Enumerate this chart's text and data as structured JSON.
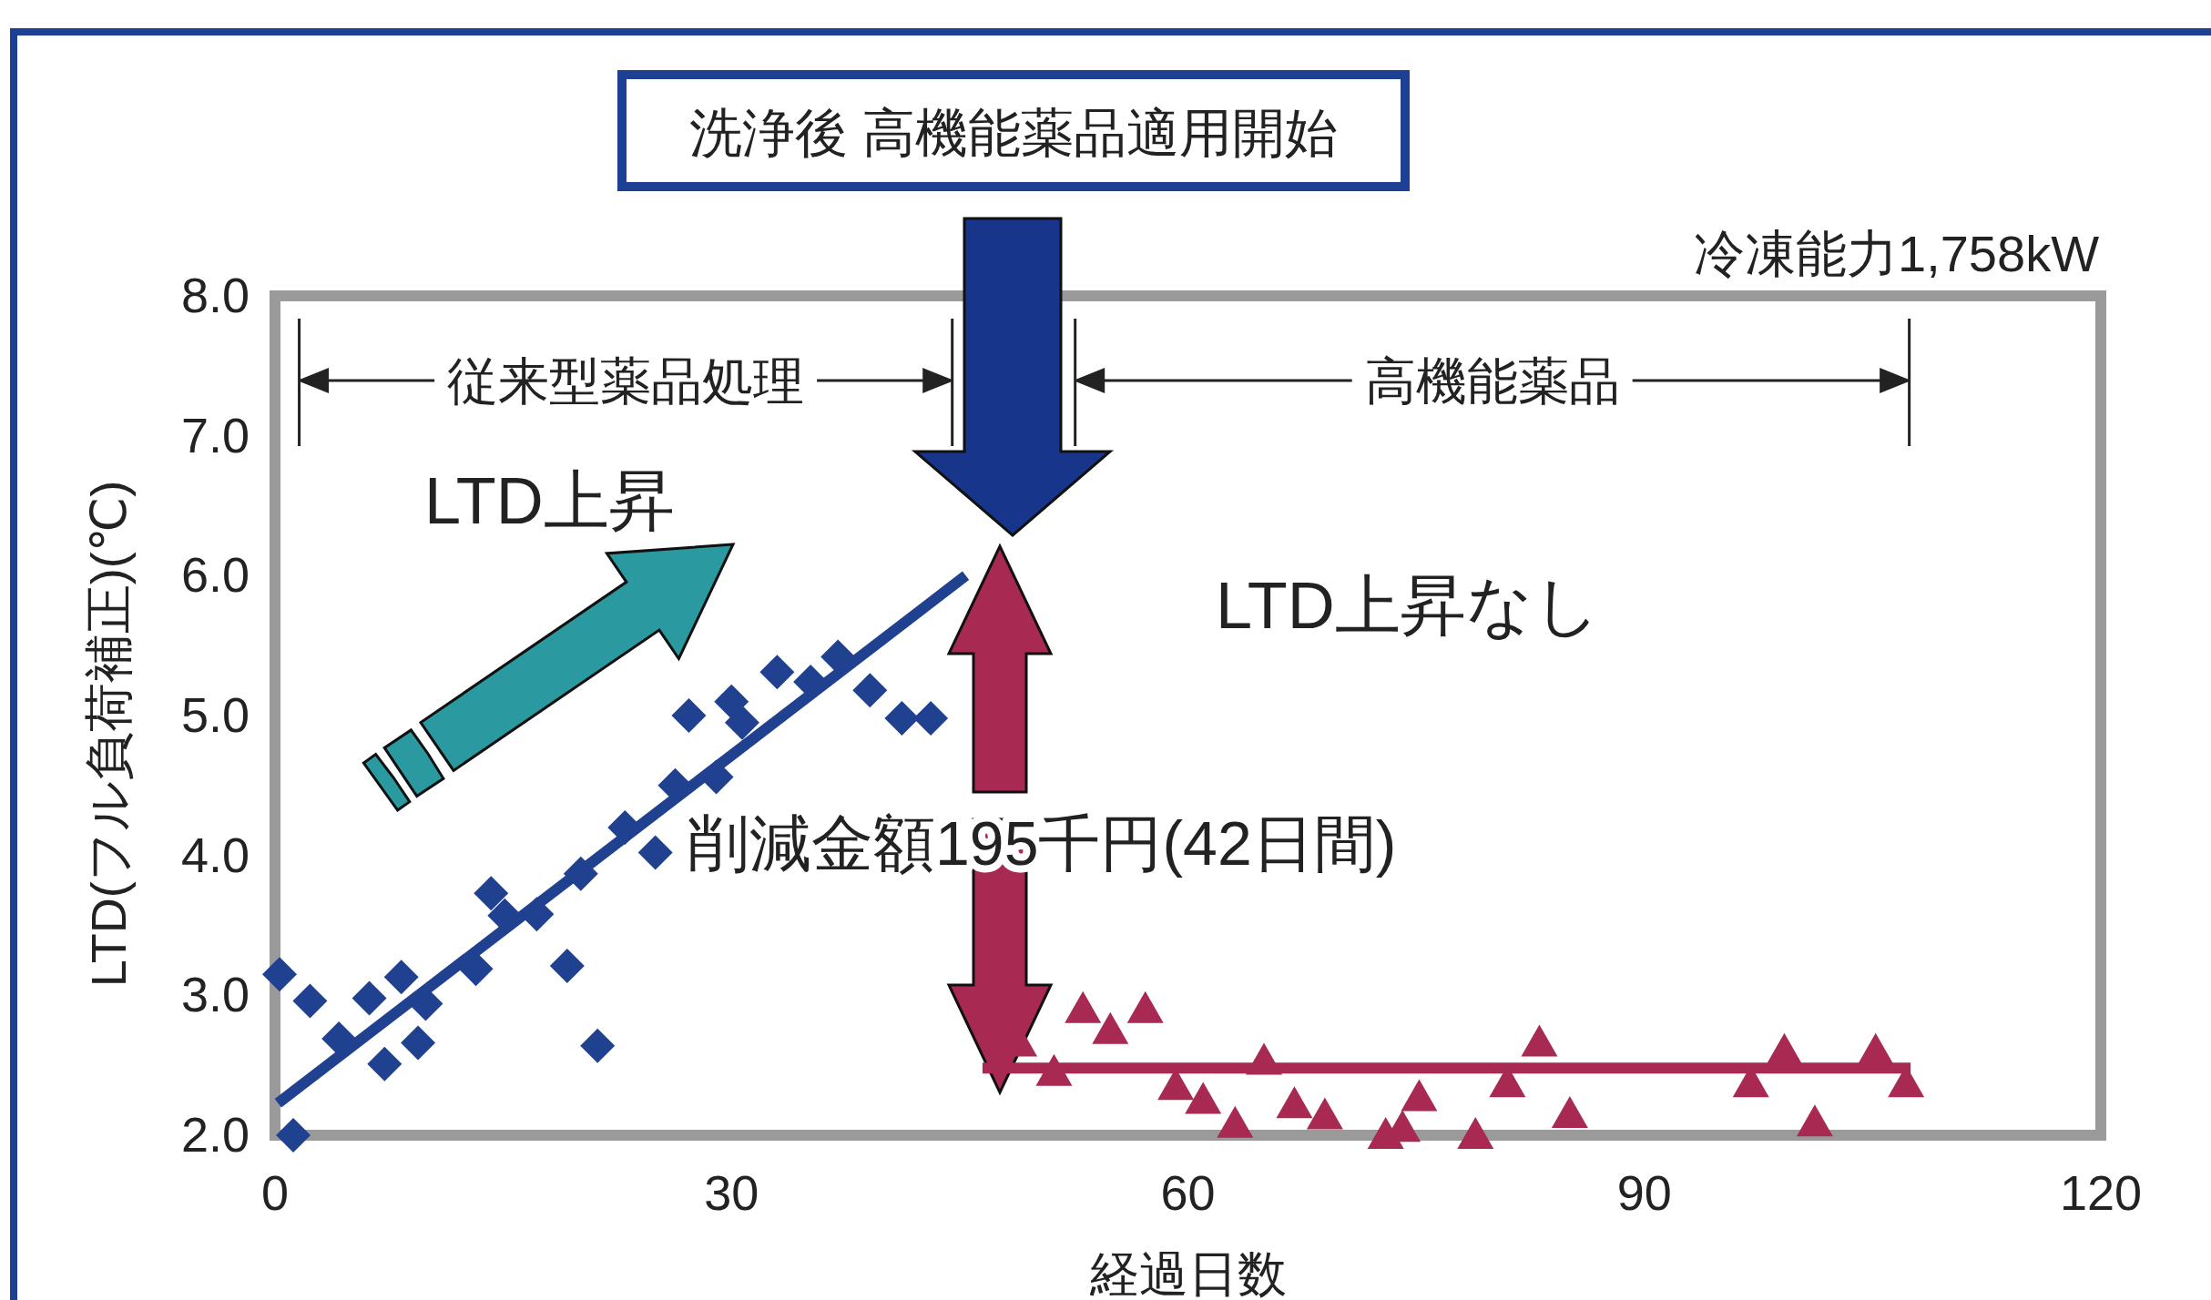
{
  "chart_data": {
    "type": "scatter",
    "xlabel": "経過日数",
    "ylabel": "LTD(フル負荷補正)(℃)",
    "xlim": [
      0,
      120
    ],
    "ylim": [
      2,
      8
    ],
    "xticks": [
      0,
      30,
      60,
      90,
      120
    ],
    "yticks": [
      {
        "value": 2,
        "label": "2.0"
      },
      {
        "value": 3,
        "label": "3.0"
      },
      {
        "value": 4,
        "label": "4.0"
      },
      {
        "value": 5,
        "label": "5.0"
      },
      {
        "value": 6,
        "label": "6.0"
      },
      {
        "value": 7,
        "label": "7.0"
      },
      {
        "value": 8,
        "label": "8.0"
      }
    ],
    "grid": false,
    "series": [
      {
        "type": "scatter",
        "marker": "diamond",
        "color": "#20418f",
        "x": [
          1.2,
          0.3,
          2.3,
          4.2,
          6.2,
          7.2,
          8.3,
          9.4,
          9.9,
          13.2,
          14.2,
          15.1,
          17.2,
          19.2,
          20.1,
          21.2,
          23.0,
          25.0,
          26.3,
          27.2,
          29.0,
          30.0,
          30.7,
          33.0,
          35.2,
          37.0,
          39.1,
          41.2,
          43.1
        ],
        "values": [
          2.0,
          3.15,
          2.96,
          2.69,
          2.98,
          2.51,
          3.13,
          2.66,
          2.94,
          3.19,
          3.73,
          3.57,
          3.58,
          3.21,
          3.87,
          2.64,
          4.2,
          4.02,
          4.5,
          5.0,
          4.56,
          5.1,
          4.95,
          5.31,
          5.24,
          5.42,
          5.18,
          4.98,
          4.98
        ]
      },
      {
        "type": "line",
        "marker": "none",
        "color": "#20418f",
        "x": [
          0.2,
          45.4
        ],
        "values": [
          2.23,
          6.0
        ]
      },
      {
        "type": "scatter",
        "marker": "triangle",
        "color": "#a82a52",
        "x": [
          48.9,
          51.2,
          53.1,
          54.9,
          57.2,
          59.2,
          61.0,
          63.1,
          65.0,
          67.0,
          69.0,
          73.0,
          74.1,
          75.2,
          78.9,
          81.0,
          83.1,
          85.1,
          97.0,
          99.2,
          101.2,
          105.2,
          107.2
        ],
        "values": [
          2.66,
          2.45,
          2.9,
          2.75,
          2.9,
          2.35,
          2.25,
          2.08,
          2.53,
          2.22,
          2.14,
          2.0,
          2.05,
          2.27,
          2.0,
          2.37,
          2.66,
          2.15,
          2.37,
          2.6,
          2.09,
          2.6,
          2.37
        ]
      },
      {
        "type": "line",
        "marker": "none",
        "color": "#a82a52",
        "x": [
          46.5,
          107.5
        ],
        "values": [
          2.48,
          2.48
        ]
      }
    ],
    "annotations": [
      "洗浄後 高機能薬品適用開始",
      "冷凍能力1,758kW",
      "従来型薬品処理",
      "高機能薬品",
      "LTD上昇",
      "LTD上昇なし",
      "削減金額195千円(42日間)"
    ]
  }
}
